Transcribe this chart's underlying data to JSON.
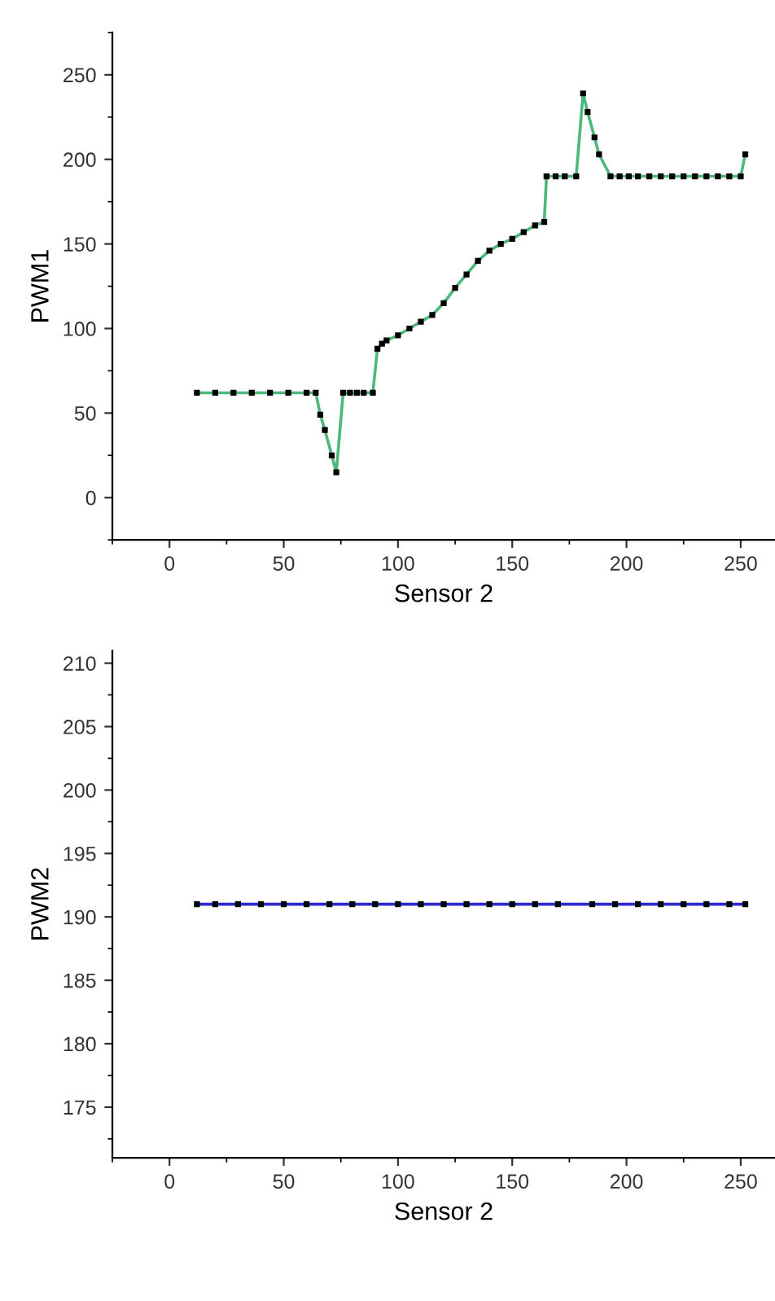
{
  "chart_data": [
    {
      "type": "line",
      "xlabel": "Sensor 2",
      "ylabel": "PWM1",
      "xlim": [
        -25,
        265
      ],
      "ylim": [
        -25,
        275
      ],
      "xticks": [
        0,
        50,
        100,
        150,
        200,
        250
      ],
      "yticks": [
        0,
        50,
        100,
        150,
        200,
        250
      ],
      "marker": "square",
      "line_style": "solid",
      "grid": false,
      "legend": false,
      "series": [
        {
          "color": "#4cb87a",
          "x": [
            12,
            20,
            28,
            36,
            44,
            52,
            60,
            64,
            66,
            68,
            71,
            73,
            76,
            79,
            82,
            85,
            89,
            91,
            93,
            95,
            100,
            105,
            110,
            115,
            120,
            125,
            130,
            135,
            140,
            145,
            150,
            155,
            160,
            164,
            165,
            169,
            173,
            178,
            181,
            183,
            186,
            188,
            193,
            197,
            201,
            205,
            210,
            215,
            220,
            225,
            230,
            235,
            240,
            245,
            250,
            252
          ],
          "values": [
            62,
            62,
            62,
            62,
            62,
            62,
            62,
            62,
            49,
            40,
            25,
            15,
            62,
            62,
            62,
            62,
            62,
            88,
            91,
            93,
            96,
            100,
            104,
            108,
            115,
            124,
            132,
            140,
            146,
            150,
            153,
            157,
            161,
            163,
            190,
            190,
            190,
            190,
            239,
            228,
            213,
            203,
            190,
            190,
            190,
            190,
            190,
            190,
            190,
            190,
            190,
            190,
            190,
            190,
            190,
            203
          ]
        }
      ]
    },
    {
      "type": "line",
      "xlabel": "Sensor 2",
      "ylabel": "PWM2",
      "xlim": [
        -25,
        265
      ],
      "ylim": [
        171,
        211
      ],
      "xticks": [
        0,
        50,
        100,
        150,
        200,
        250
      ],
      "yticks": [
        175,
        180,
        185,
        190,
        195,
        200,
        205,
        210
      ],
      "marker": "square",
      "line_style": "solid",
      "grid": false,
      "legend": false,
      "series": [
        {
          "color": "#2a2ad0",
          "x": [
            12,
            20,
            30,
            40,
            50,
            60,
            70,
            80,
            90,
            100,
            110,
            120,
            130,
            140,
            150,
            160,
            170,
            185,
            195,
            205,
            215,
            225,
            235,
            245,
            252
          ],
          "values": [
            191,
            191,
            191,
            191,
            191,
            191,
            191,
            191,
            191,
            191,
            191,
            191,
            191,
            191,
            191,
            191,
            191,
            191,
            191,
            191,
            191,
            191,
            191,
            191,
            191
          ]
        }
      ]
    }
  ]
}
